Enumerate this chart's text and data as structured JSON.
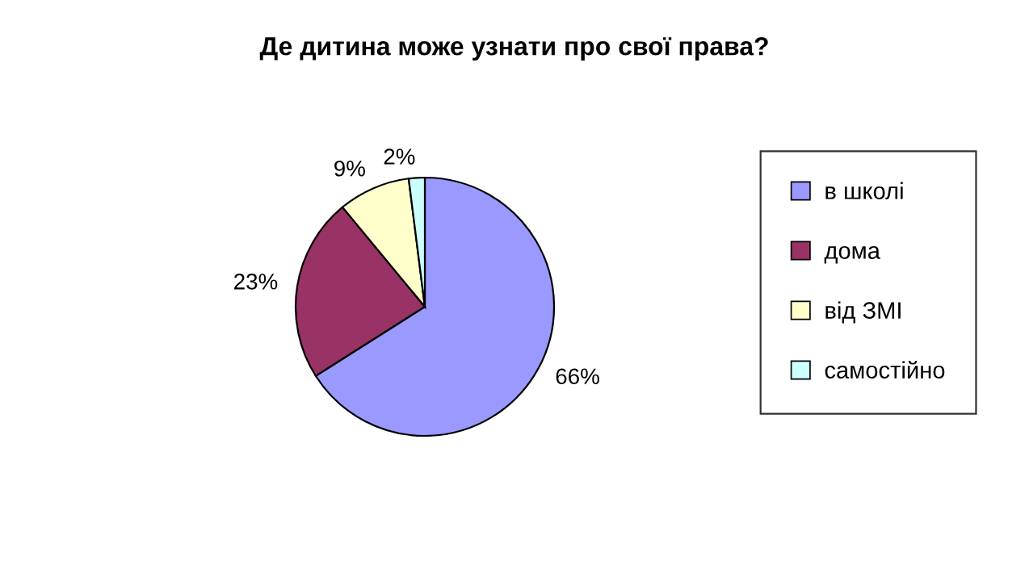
{
  "chart_data": {
    "type": "pie",
    "title": "Де дитина може узнати про свої права?",
    "categories": [
      "в школі",
      "дома",
      "від ЗМІ",
      "самостійно"
    ],
    "values": [
      66,
      23,
      9,
      2
    ],
    "colors": [
      "#9999ff",
      "#993366",
      "#ffffcc",
      "#ccffff"
    ],
    "value_labels": [
      "66%",
      "23%",
      "9%",
      "2%"
    ],
    "legend": "right"
  }
}
